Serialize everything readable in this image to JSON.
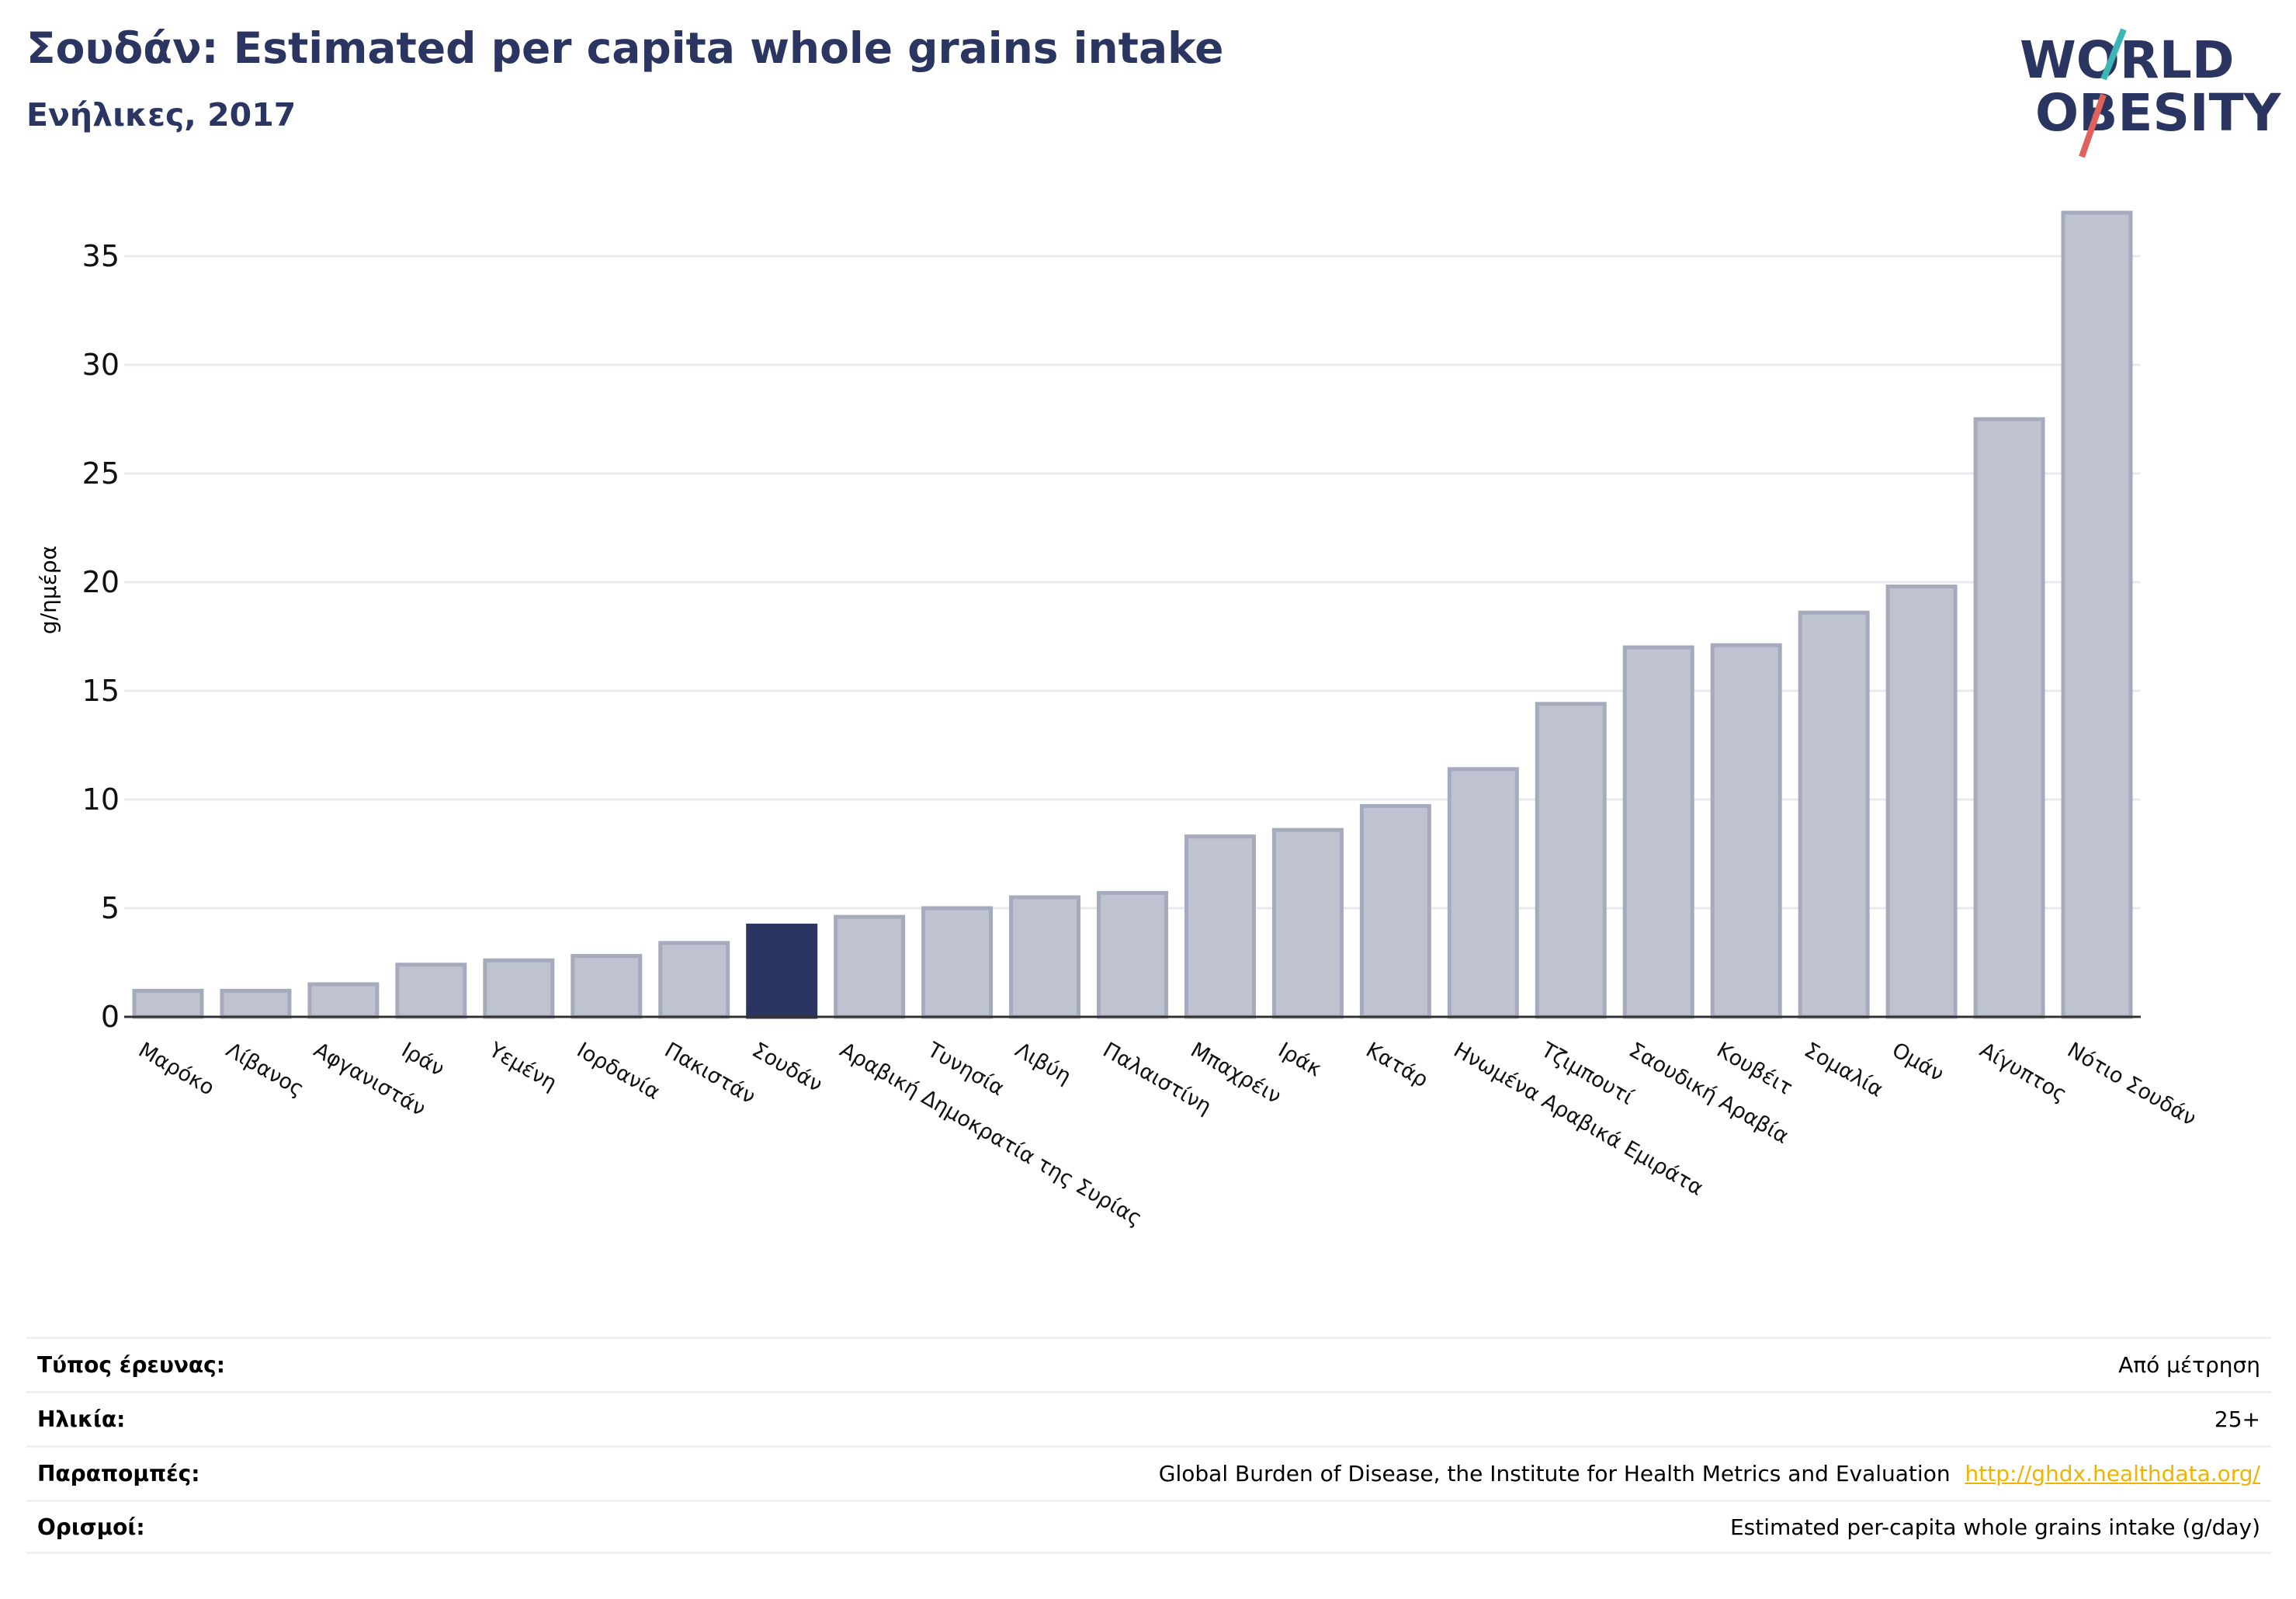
{
  "header": {
    "title": "Σουδάν: Estimated per capita whole grains intake",
    "subtitle": "Ενήλικες, 2017"
  },
  "logo": {
    "line1": "WORLD",
    "line2": "OBESITY",
    "text_color": "#2b3561",
    "slash_colors": [
      "#3ab6b6",
      "#e0625a"
    ]
  },
  "chart_data": {
    "type": "bar",
    "title": "Σουδάν: Estimated per capita whole grains intake",
    "subtitle": "Ενήλικες, 2017",
    "ylabel": "g/ημέρα",
    "xlabel": "",
    "ylim": [
      0,
      37.5
    ],
    "yticks": [
      0,
      5,
      10,
      15,
      20,
      25,
      30,
      35
    ],
    "grid": "horizontal",
    "highlight": "Σουδάν",
    "highlight_color": "#2b3561",
    "bar_color": "#bfc2cf",
    "bar_border_color": "#a6aabd",
    "categories": [
      "Μαρόκο",
      "Λίβανος",
      "Αφγανιστάν",
      "Ιράν",
      "Υεμένη",
      "Ιορδανία",
      "Πακιστάν",
      "Σουδάν",
      "Αραβική Δημοκρατία της Συρίας",
      "Τυνησία",
      "Λιβύη",
      "Παλαιστίνη",
      "Μπαχρέιν",
      "Ιράκ",
      "Κατάρ",
      "Ηνωμένα Αραβικά Εμιράτα",
      "Τζιμπουτί",
      "Σαουδική Αραβία",
      "Κουβέιτ",
      "Σομαλία",
      "Ομάν",
      "Αίγυπτος",
      "Νότιο Σουδάν"
    ],
    "values": [
      1.2,
      1.2,
      1.5,
      2.4,
      2.6,
      2.8,
      3.4,
      4.2,
      4.6,
      5.0,
      5.5,
      5.7,
      8.3,
      8.6,
      9.7,
      11.4,
      14.4,
      17.0,
      17.1,
      18.6,
      19.8,
      27.5,
      37.0
    ]
  },
  "info": {
    "rows": [
      {
        "label": "Τύπος έρευνας:",
        "value": "Από μέτρηση",
        "link": ""
      },
      {
        "label": "Ηλικία:",
        "value": "25+",
        "link": ""
      },
      {
        "label": "Παραπομπές:",
        "value": "Global Burden of Disease, the Institute for Health Metrics and Evaluation",
        "link": "http://ghdx.healthdata.org/"
      },
      {
        "label": "Ορισμοί:",
        "value": "Estimated per-capita whole grains intake (g/day)",
        "link": ""
      }
    ]
  }
}
